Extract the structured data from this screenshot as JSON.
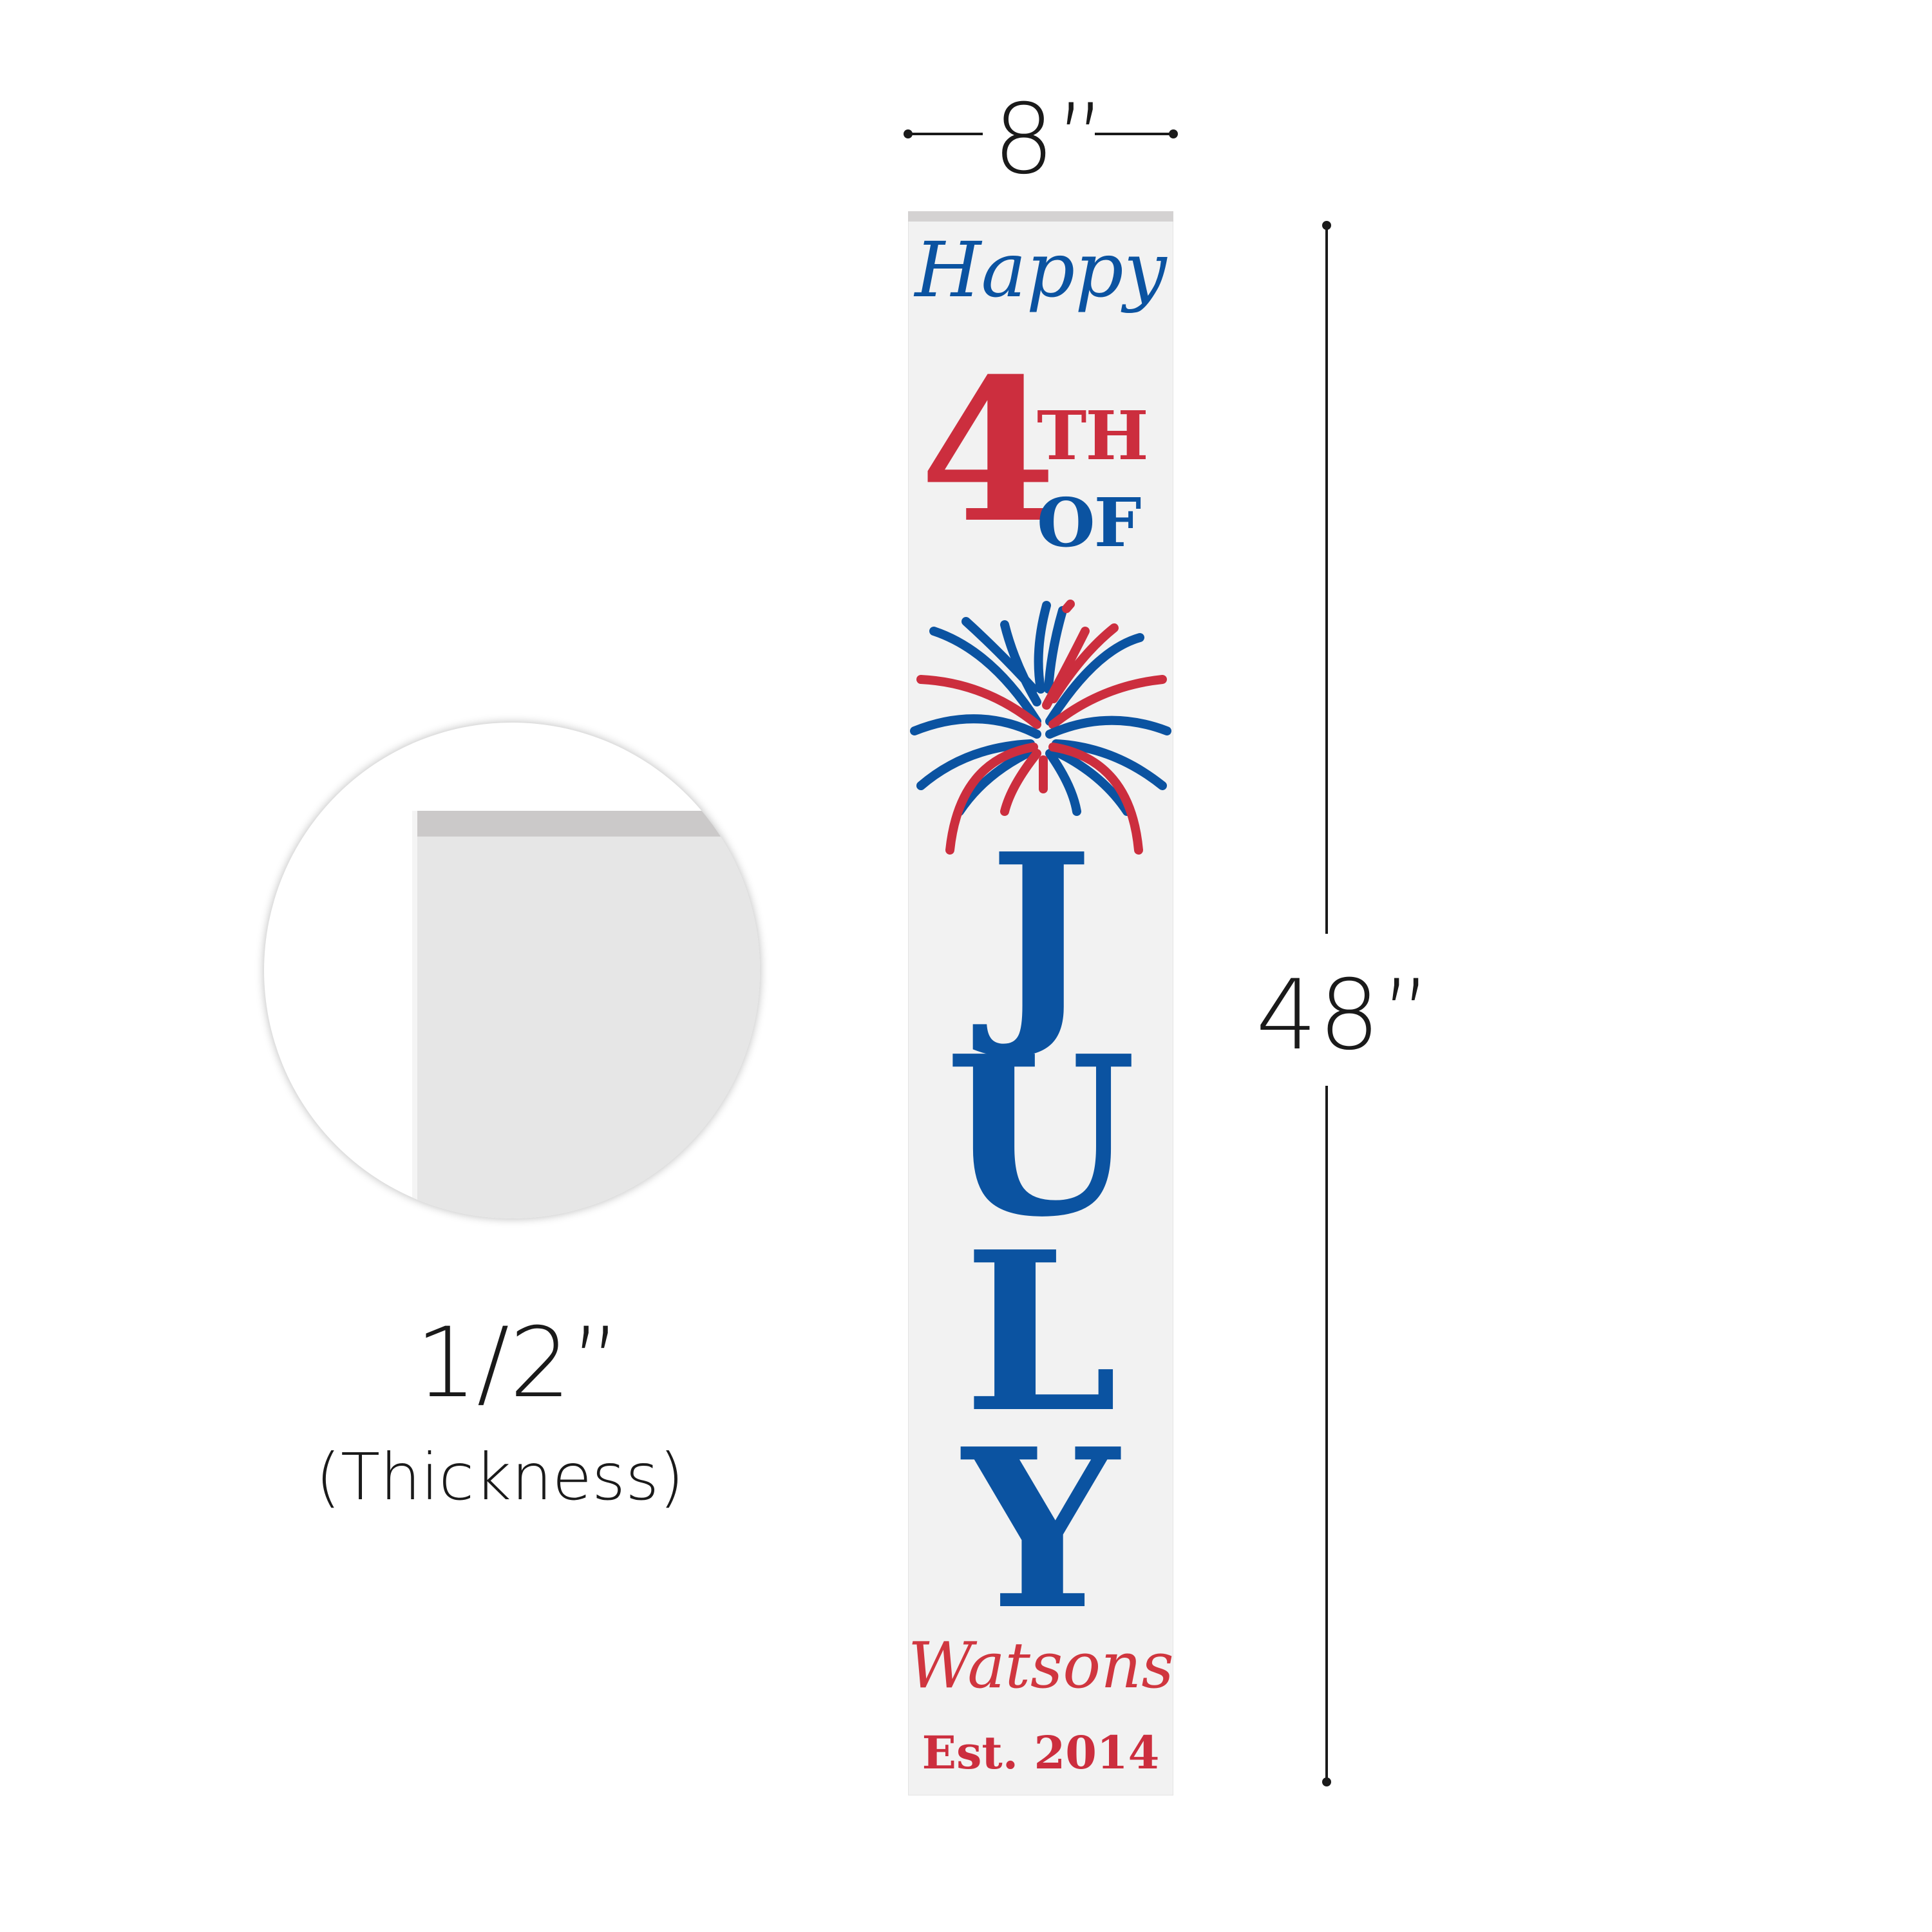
{
  "dimensions": {
    "width": "8”",
    "height": "48”",
    "thickness": "1/2”",
    "thickness_caption": "(Thickness)"
  },
  "sign": {
    "line1": "Happy",
    "number": "4",
    "suffix_top": "TH",
    "suffix_bottom": "OF",
    "month_letters": [
      "J",
      "U",
      "L",
      "Y"
    ],
    "name": "Watsons",
    "established": "Est. 2014"
  },
  "colors": {
    "blue": "#0b53a1",
    "red": "#cc2e3e",
    "board": "#f2f2f2",
    "dimension_ink": "#1a1a1a"
  },
  "icons": [
    "fireworks-icon"
  ]
}
